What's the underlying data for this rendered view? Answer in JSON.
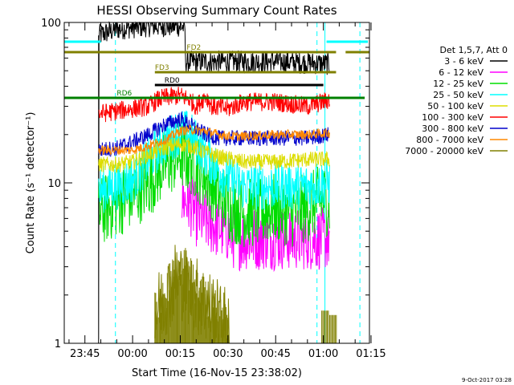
{
  "chart_data": {
    "type": "line",
    "title": "HESSI Observing Summary Count Rates",
    "xlabel": "Start Time (16-Nov-15 23:38:02)",
    "ylabel": "Count Rate (s⁻¹ detector⁻¹)",
    "yscale": "log",
    "ylim": [
      1,
      100
    ],
    "xlim_minutes": [
      -6.5,
      89.5
    ],
    "x_ticks": [
      {
        "minutes": 0,
        "label": "23:45"
      },
      {
        "minutes": 15,
        "label": "00:00"
      },
      {
        "minutes": 30,
        "label": "00:15"
      },
      {
        "minutes": 45,
        "label": "00:30"
      },
      {
        "minutes": 60,
        "label": "00:45"
      },
      {
        "minutes": 75,
        "label": "01:00"
      },
      {
        "minutes": 90,
        "label": "01:15"
      }
    ],
    "y_ticks": [
      {
        "value": 1,
        "label": "1"
      },
      {
        "value": 10,
        "label": "10"
      },
      {
        "value": 100,
        "label": "100"
      }
    ],
    "legend_title": "Det 1,5,7, Att 0",
    "legend_placement": "right",
    "series": [
      {
        "name": "3 - 6 keV",
        "color": "#000000",
        "points": [
          [
            4.3,
            0.1
          ],
          [
            4.3,
            83
          ],
          [
            10,
            91
          ],
          [
            20,
            95
          ],
          [
            30,
            95
          ],
          [
            31.5,
            93
          ],
          [
            31.5,
            57
          ],
          [
            40,
            57
          ],
          [
            50,
            57
          ],
          [
            60,
            57
          ],
          [
            70,
            56
          ],
          [
            77,
            55
          ]
        ],
        "noise": 0.07,
        "clip": 100
      },
      {
        "name": "6 - 12 keV",
        "color": "#ff00ff",
        "points": [
          [
            30.5,
            8
          ],
          [
            33,
            7.5
          ],
          [
            35,
            6.3
          ],
          [
            40,
            5.5
          ],
          [
            45,
            5
          ],
          [
            47,
            4.5
          ],
          [
            55,
            4.5
          ],
          [
            60,
            4.5
          ],
          [
            70,
            4.5
          ],
          [
            77,
            4.5
          ]
        ],
        "noise": 0.2
      },
      {
        "name": "12 - 25 keV",
        "color": "#00dd00",
        "points": [
          [
            4.3,
            6.5
          ],
          [
            10,
            7.5
          ],
          [
            15,
            8.5
          ],
          [
            20,
            10
          ],
          [
            25,
            13
          ],
          [
            30,
            15
          ],
          [
            33,
            14
          ],
          [
            38,
            11
          ],
          [
            42,
            8.5
          ],
          [
            46,
            7
          ],
          [
            50,
            6.5
          ],
          [
            55,
            6.5
          ],
          [
            60,
            7
          ],
          [
            65,
            6.5
          ],
          [
            70,
            7
          ],
          [
            75,
            8
          ],
          [
            77,
            7.5
          ]
        ],
        "noise": 0.22
      },
      {
        "name": "25 - 50 keV",
        "color": "#00ffff",
        "points": [
          [
            4.3,
            9
          ],
          [
            10,
            9.5
          ],
          [
            15,
            10.5
          ],
          [
            20,
            14
          ],
          [
            25,
            18
          ],
          [
            30,
            21
          ],
          [
            33,
            20
          ],
          [
            38,
            15
          ],
          [
            42,
            12
          ],
          [
            46,
            10.5
          ],
          [
            50,
            9.5
          ],
          [
            55,
            9.5
          ],
          [
            60,
            9.5
          ],
          [
            65,
            9.5
          ],
          [
            70,
            9.5
          ],
          [
            75,
            10
          ],
          [
            77,
            10
          ]
        ],
        "noise": 0.15
      },
      {
        "name": "50 - 100 keV",
        "color": "#dddd00",
        "points": [
          [
            4.3,
            13
          ],
          [
            10,
            13
          ],
          [
            15,
            13.5
          ],
          [
            20,
            15
          ],
          [
            25,
            16.5
          ],
          [
            30,
            17.5
          ],
          [
            33,
            17
          ],
          [
            38,
            15.5
          ],
          [
            42,
            14.5
          ],
          [
            46,
            14
          ],
          [
            50,
            13.5
          ],
          [
            60,
            13.5
          ],
          [
            70,
            14
          ],
          [
            77,
            14
          ]
        ],
        "noise": 0.05
      },
      {
        "name": "100 - 300 keV",
        "color": "#ff0000",
        "points": [
          [
            4.3,
            27
          ],
          [
            10,
            28
          ],
          [
            15,
            29
          ],
          [
            20,
            30
          ],
          [
            23,
            33
          ],
          [
            25,
            34
          ],
          [
            30,
            35
          ],
          [
            33,
            33
          ],
          [
            35,
            30
          ],
          [
            38,
            35
          ],
          [
            40,
            30
          ],
          [
            45,
            29
          ],
          [
            50,
            32
          ],
          [
            55,
            32
          ],
          [
            60,
            32
          ],
          [
            65,
            31
          ],
          [
            70,
            30
          ],
          [
            75,
            32
          ],
          [
            77,
            33
          ]
        ],
        "noise": 0.06
      },
      {
        "name": "300 - 800 keV",
        "color": "#0000cc",
        "points": [
          [
            4.3,
            16
          ],
          [
            10,
            16.5
          ],
          [
            15,
            18
          ],
          [
            20,
            20
          ],
          [
            25,
            23
          ],
          [
            30,
            25
          ],
          [
            33,
            23
          ],
          [
            38,
            20
          ],
          [
            42,
            19
          ],
          [
            46,
            19
          ],
          [
            50,
            19
          ],
          [
            60,
            19
          ],
          [
            70,
            19
          ],
          [
            77,
            20
          ]
        ],
        "noise": 0.05
      },
      {
        "name": "800 - 7000 keV",
        "color": "#ff8800",
        "points": [
          [
            4.3,
            16
          ],
          [
            10,
            16
          ],
          [
            15,
            16
          ],
          [
            20,
            17
          ],
          [
            25,
            18.5
          ],
          [
            30,
            21
          ],
          [
            33,
            21.5
          ],
          [
            38,
            21
          ],
          [
            42,
            20
          ],
          [
            46,
            19.5
          ],
          [
            50,
            19.5
          ],
          [
            60,
            20
          ],
          [
            70,
            20
          ],
          [
            77,
            20.5
          ]
        ],
        "noise": 0.03
      },
      {
        "name": "7000 - 20000 keV",
        "color": "#808000",
        "points": [
          [
            22,
            1.5
          ],
          [
            27,
            2.2
          ],
          [
            29,
            2.6
          ],
          [
            31,
            2.4
          ],
          [
            34,
            2.1
          ],
          [
            37,
            1.8
          ],
          [
            40,
            1.6
          ],
          [
            42,
            1.4
          ],
          [
            44,
            1.3
          ],
          [
            45.5,
            1.1
          ]
        ],
        "noise": 0.25,
        "sparse": [
          [
            74.5,
            1.6
          ],
          [
            77,
            1.5
          ]
        ]
      }
    ],
    "state_flags": [
      {
        "label": "FD2",
        "color": "#808000",
        "segments": [
          [
            -6.5,
            79
          ],
          [
            82,
            89.5
          ]
        ],
        "y_ratio": 0.0925,
        "label_at": 32
      },
      {
        "label": "FD3",
        "color": "#808000",
        "segments": [
          [
            22,
            79
          ]
        ],
        "y_ratio": 0.155,
        "label_at": 22
      },
      {
        "label": "RD0",
        "color": "#000000",
        "segments": [
          [
            22,
            75
          ]
        ],
        "y_ratio": 0.195,
        "label_at": 25
      },
      {
        "label": "RD6",
        "color": "#008000",
        "segments": [
          [
            -6.5,
            88
          ]
        ],
        "y_ratio": 0.235,
        "label_at": 10
      },
      {
        "label": "",
        "color": "#00ffff",
        "segments": [
          [
            -6.5,
            5
          ],
          [
            76,
            89
          ]
        ],
        "y_ratio": 0.06
      }
    ],
    "markers": [
      {
        "color": "#00ffff",
        "style": "solid",
        "minutes": 75.5
      },
      {
        "color": "#00ffff",
        "style": "dashed",
        "minutes": 9.6
      },
      {
        "color": "#00ffff",
        "style": "dashed",
        "minutes": 73
      },
      {
        "color": "#00ffff",
        "style": "dashed",
        "minutes": 86.5
      }
    ]
  },
  "footer": {
    "date_stamp": "9-Oct-2017 03:28"
  }
}
